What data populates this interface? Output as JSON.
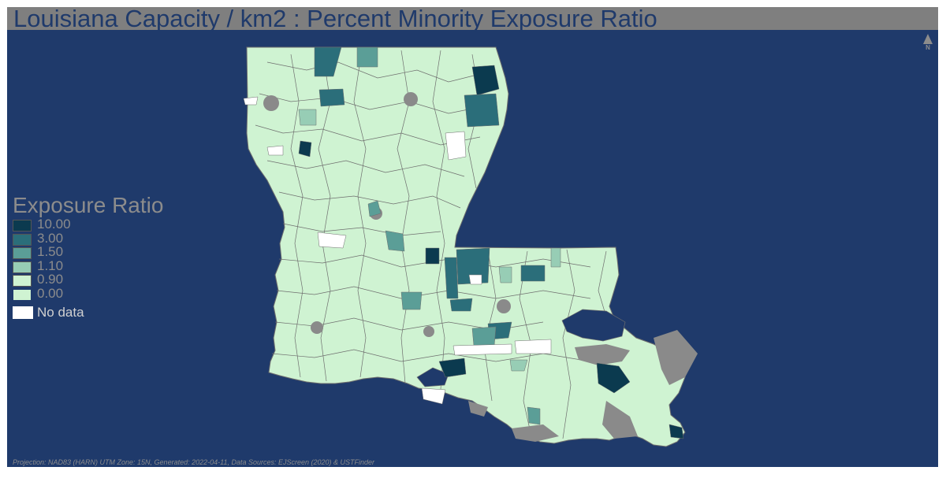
{
  "title": "Louisiana Capacity / km2 : Percent Minority Exposure Ratio",
  "north_label": "N",
  "legend": {
    "title": "Exposure Ratio",
    "classes": [
      {
        "label": "10.00",
        "color": "#0b3a4f"
      },
      {
        "label": "3.00",
        "color": "#2b6e7a"
      },
      {
        "label": "1.50",
        "color": "#5b9e97"
      },
      {
        "label": "1.10",
        "color": "#97cdb5"
      },
      {
        "label": "0.90",
        "color": "#cff3d2"
      },
      {
        "label": "0.00",
        "color": "#cff3d2"
      }
    ],
    "no_data_label": "No data"
  },
  "footer": "Projection: NAD83 (HARN) UTM Zone: 15N, Generated: 2022-04-11, Data Sources: EJScreen (2020) & USTFinder",
  "colors": {
    "background": "#1f3a6b",
    "title_bar": "#7f7f7f",
    "land_default": "#cff3d2",
    "boundary": "#6e6e6e",
    "urban_dense": "#8a8a8a",
    "no_data": "#ffffff"
  }
}
